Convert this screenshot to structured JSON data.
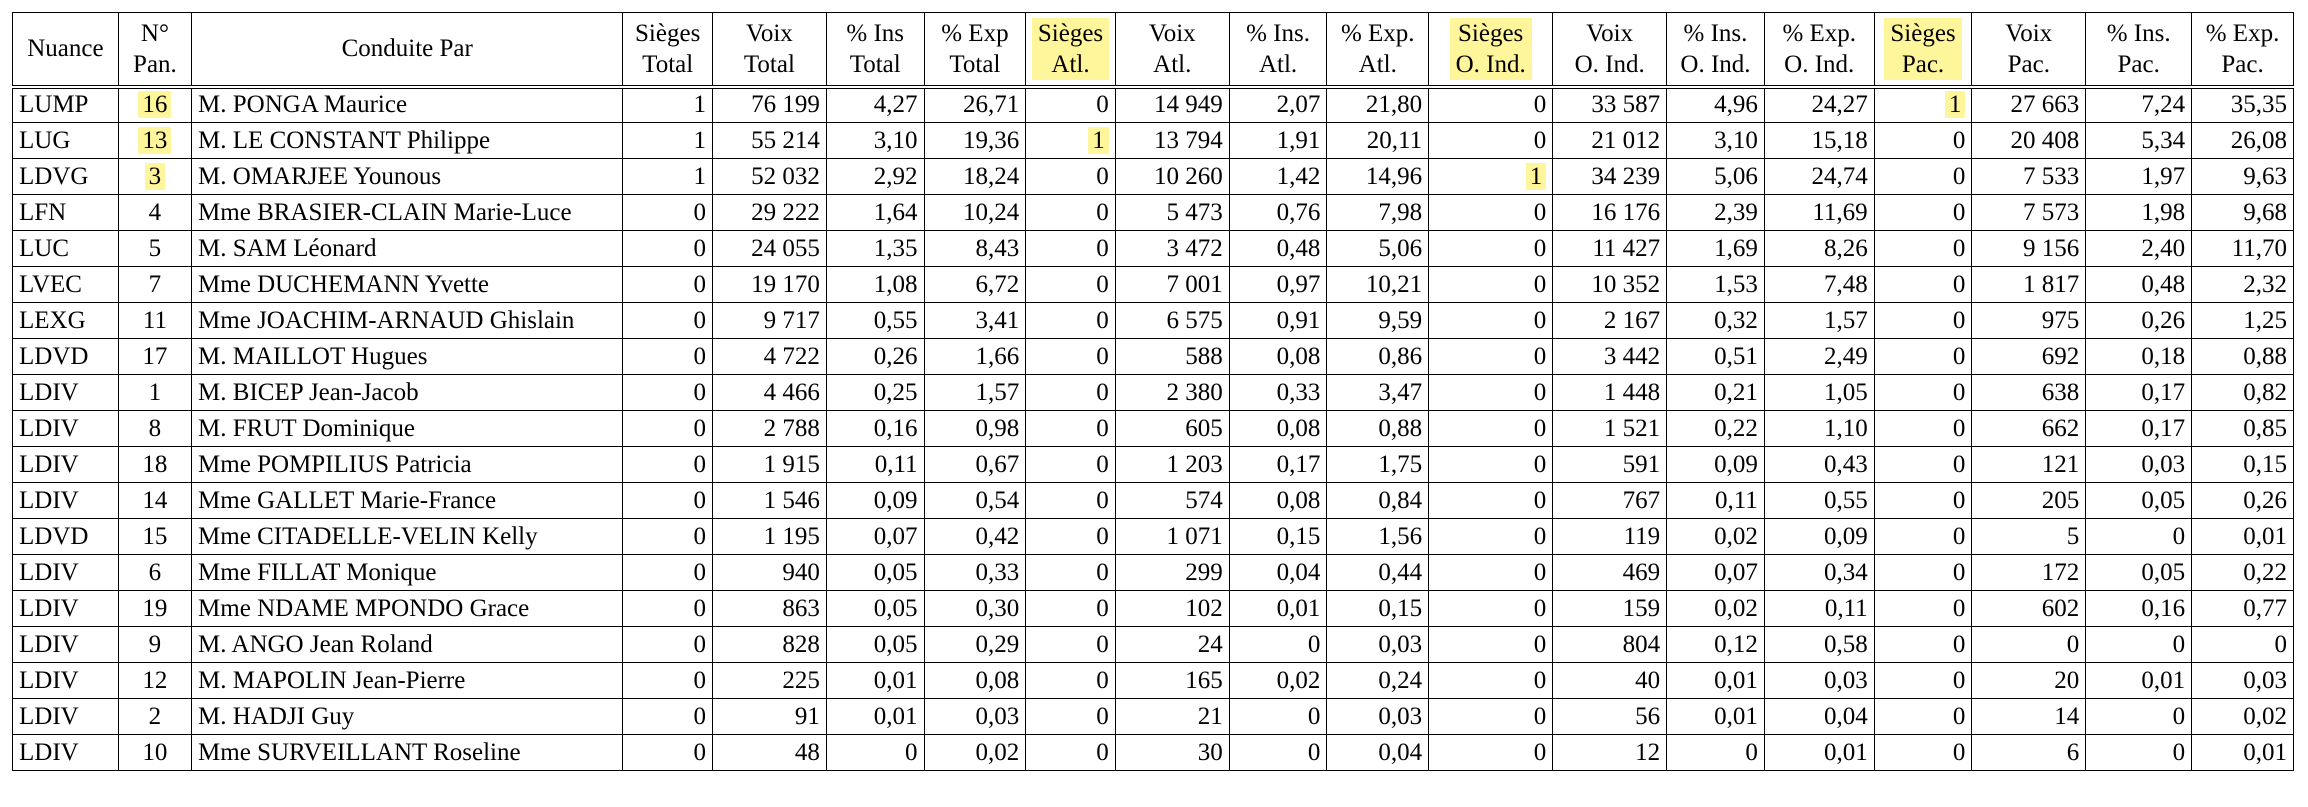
{
  "headers": [
    [
      "Nuance"
    ],
    [
      "N°",
      "Pan."
    ],
    [
      "Conduite Par"
    ],
    [
      "Sièges",
      "Total"
    ],
    [
      "Voix",
      "Total"
    ],
    [
      "% Ins",
      "Total"
    ],
    [
      "% Exp",
      "Total"
    ],
    [
      "Sièges",
      "Atl."
    ],
    [
      "Voix",
      "Atl."
    ],
    [
      "% Ins.",
      "Atl."
    ],
    [
      "% Exp.",
      "Atl."
    ],
    [
      "Sièges",
      "O. Ind."
    ],
    [
      "Voix",
      "O. Ind."
    ],
    [
      "% Ins.",
      "O. Ind."
    ],
    [
      "% Exp.",
      "O. Ind."
    ],
    [
      "Sièges",
      "Pac."
    ],
    [
      "Voix",
      "Pac."
    ],
    [
      "% Ins.",
      "Pac."
    ],
    [
      "% Exp.",
      "Pac."
    ]
  ],
  "highlighted_header_columns": [
    7,
    11,
    15
  ],
  "highlight_color": "#fff59a",
  "rows": [
    [
      "LUMP",
      "16",
      "M. PONGA Maurice",
      "1",
      "76 199",
      "4,27",
      "26,71",
      "0",
      "14 949",
      "2,07",
      "21,80",
      "0",
      "33 587",
      "4,96",
      "24,27",
      "1",
      "27 663",
      "7,24",
      "35,35"
    ],
    [
      "LUG",
      "13",
      "M. LE CONSTANT Philippe",
      "1",
      "55 214",
      "3,10",
      "19,36",
      "1",
      "13 794",
      "1,91",
      "20,11",
      "0",
      "21 012",
      "3,10",
      "15,18",
      "0",
      "20 408",
      "5,34",
      "26,08"
    ],
    [
      "LDVG",
      "3",
      "M. OMARJEE Younous",
      "1",
      "52 032",
      "2,92",
      "18,24",
      "0",
      "10 260",
      "1,42",
      "14,96",
      "1",
      "34 239",
      "5,06",
      "24,74",
      "0",
      "7 533",
      "1,97",
      "9,63"
    ],
    [
      "LFN",
      "4",
      "Mme BRASIER-CLAIN Marie-Luce",
      "0",
      "29 222",
      "1,64",
      "10,24",
      "0",
      "5 473",
      "0,76",
      "7,98",
      "0",
      "16 176",
      "2,39",
      "11,69",
      "0",
      "7 573",
      "1,98",
      "9,68"
    ],
    [
      "LUC",
      "5",
      "M. SAM Léonard",
      "0",
      "24 055",
      "1,35",
      "8,43",
      "0",
      "3 472",
      "0,48",
      "5,06",
      "0",
      "11 427",
      "1,69",
      "8,26",
      "0",
      "9 156",
      "2,40",
      "11,70"
    ],
    [
      "LVEC",
      "7",
      "Mme DUCHEMANN Yvette",
      "0",
      "19 170",
      "1,08",
      "6,72",
      "0",
      "7 001",
      "0,97",
      "10,21",
      "0",
      "10 352",
      "1,53",
      "7,48",
      "0",
      "1 817",
      "0,48",
      "2,32"
    ],
    [
      "LEXG",
      "11",
      "Mme JOACHIM-ARNAUD Ghislain",
      "0",
      "9 717",
      "0,55",
      "3,41",
      "0",
      "6 575",
      "0,91",
      "9,59",
      "0",
      "2 167",
      "0,32",
      "1,57",
      "0",
      "975",
      "0,26",
      "1,25"
    ],
    [
      "LDVD",
      "17",
      "M. MAILLOT Hugues",
      "0",
      "4 722",
      "0,26",
      "1,66",
      "0",
      "588",
      "0,08",
      "0,86",
      "0",
      "3 442",
      "0,51",
      "2,49",
      "0",
      "692",
      "0,18",
      "0,88"
    ],
    [
      "LDIV",
      "1",
      "M. BICEP Jean-Jacob",
      "0",
      "4 466",
      "0,25",
      "1,57",
      "0",
      "2 380",
      "0,33",
      "3,47",
      "0",
      "1 448",
      "0,21",
      "1,05",
      "0",
      "638",
      "0,17",
      "0,82"
    ],
    [
      "LDIV",
      "8",
      "M. FRUT Dominique",
      "0",
      "2 788",
      "0,16",
      "0,98",
      "0",
      "605",
      "0,08",
      "0,88",
      "0",
      "1 521",
      "0,22",
      "1,10",
      "0",
      "662",
      "0,17",
      "0,85"
    ],
    [
      "LDIV",
      "18",
      "Mme POMPILIUS Patricia",
      "0",
      "1 915",
      "0,11",
      "0,67",
      "0",
      "1 203",
      "0,17",
      "1,75",
      "0",
      "591",
      "0,09",
      "0,43",
      "0",
      "121",
      "0,03",
      "0,15"
    ],
    [
      "LDIV",
      "14",
      "Mme GALLET Marie-France",
      "0",
      "1 546",
      "0,09",
      "0,54",
      "0",
      "574",
      "0,08",
      "0,84",
      "0",
      "767",
      "0,11",
      "0,55",
      "0",
      "205",
      "0,05",
      "0,26"
    ],
    [
      "LDVD",
      "15",
      "Mme CITADELLE-VELIN Kelly",
      "0",
      "1 195",
      "0,07",
      "0,42",
      "0",
      "1 071",
      "0,15",
      "1,56",
      "0",
      "119",
      "0,02",
      "0,09",
      "0",
      "5",
      "0",
      "0,01"
    ],
    [
      "LDIV",
      "6",
      "Mme FILLAT Monique",
      "0",
      "940",
      "0,05",
      "0,33",
      "0",
      "299",
      "0,04",
      "0,44",
      "0",
      "469",
      "0,07",
      "0,34",
      "0",
      "172",
      "0,05",
      "0,22"
    ],
    [
      "LDIV",
      "19",
      "Mme NDAME MPONDO Grace",
      "0",
      "863",
      "0,05",
      "0,30",
      "0",
      "102",
      "0,01",
      "0,15",
      "0",
      "159",
      "0,02",
      "0,11",
      "0",
      "602",
      "0,16",
      "0,77"
    ],
    [
      "LDIV",
      "9",
      "M. ANGO Jean Roland",
      "0",
      "828",
      "0,05",
      "0,29",
      "0",
      "24",
      "0",
      "0,03",
      "0",
      "804",
      "0,12",
      "0,58",
      "0",
      "0",
      "0",
      "0"
    ],
    [
      "LDIV",
      "12",
      "M. MAPOLIN Jean-Pierre",
      "0",
      "225",
      "0,01",
      "0,08",
      "0",
      "165",
      "0,02",
      "0,24",
      "0",
      "40",
      "0,01",
      "0,03",
      "0",
      "20",
      "0,01",
      "0,03"
    ],
    [
      "LDIV",
      "2",
      "M. HADJI Guy",
      "0",
      "91",
      "0,01",
      "0,03",
      "0",
      "21",
      "0",
      "0,03",
      "0",
      "56",
      "0,01",
      "0,04",
      "0",
      "14",
      "0",
      "0,02"
    ],
    [
      "LDIV",
      "10",
      "Mme SURVEILLANT Roseline",
      "0",
      "48",
      "0",
      "0,02",
      "0",
      "30",
      "0",
      "0,04",
      "0",
      "12",
      "0",
      "0,01",
      "0",
      "6",
      "0",
      "0,01"
    ]
  ],
  "highlighted_cells": [
    [
      0,
      1
    ],
    [
      1,
      1
    ],
    [
      2,
      1
    ],
    [
      0,
      15
    ],
    [
      1,
      7
    ],
    [
      2,
      11
    ]
  ]
}
